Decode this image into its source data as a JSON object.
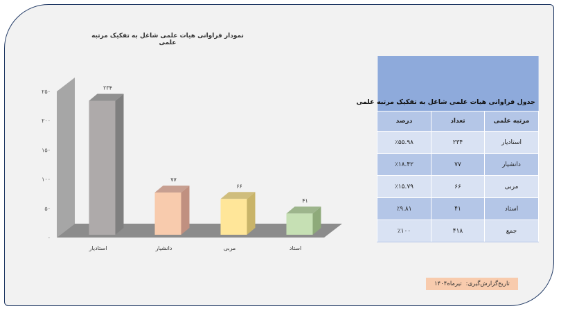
{
  "chart_data": {
    "type": "bar",
    "title": "نمودار فراوانی هیات علمی شاغل به تفکیک مرتبه علمی",
    "categories": [
      "استادیار",
      "دانشیار",
      "مربی",
      "استاد"
    ],
    "values": [
      234,
      77,
      66,
      41
    ],
    "value_labels": [
      "۲۳۴",
      "۷۷",
      "۶۶",
      "۴۱"
    ],
    "ylim": [
      0,
      250
    ],
    "yticks": [
      0,
      50,
      100,
      150,
      200,
      250
    ],
    "ytick_labels": [
      "۰",
      "۵۰",
      "۱۰۰",
      "۱۵۰",
      "۲۰۰",
      "۲۵۰"
    ],
    "bar_colors": [
      "#aeaaaa",
      "#f8cbad",
      "#ffe699",
      "#c6e0b4"
    ],
    "bar_side_colors": [
      "#7f7f7f",
      "#c09080",
      "#c9b469",
      "#8eaa7a"
    ],
    "floor_color": "#8c8c8c",
    "wall_color": "#a6a6a6",
    "grid": false,
    "legend": "none"
  },
  "table": {
    "title": "جدول فراوانی هیات علمی شاغل به تفکیک مرتبه علمی",
    "headers": [
      "مرتبه علمی",
      "تعداد",
      "درصد"
    ],
    "rows": [
      [
        "استادیار",
        "۲۳۴",
        "٪۵۵.۹۸"
      ],
      [
        "دانشیار",
        "۷۷",
        "٪۱۸.۴۲"
      ],
      [
        "مربی",
        "۶۶",
        "٪۱۵.۷۹"
      ],
      [
        "استاد",
        "۴۱",
        "٪۹.۸۱"
      ],
      [
        "جمع",
        "۴۱۸",
        "٪۱۰۰"
      ]
    ]
  },
  "report_date": {
    "label": "تاریخ‌گزارش‌گیری:",
    "value": "تیرماه۱۴۰۴"
  },
  "colors": {
    "panel_bg": "#f2f2f2",
    "panel_border": "#1f3864",
    "table_header": "#8eaadb",
    "table_row_dark": "#b4c6e7",
    "table_row_light": "#d9e2f3",
    "date_bg": "#f8cbad"
  }
}
